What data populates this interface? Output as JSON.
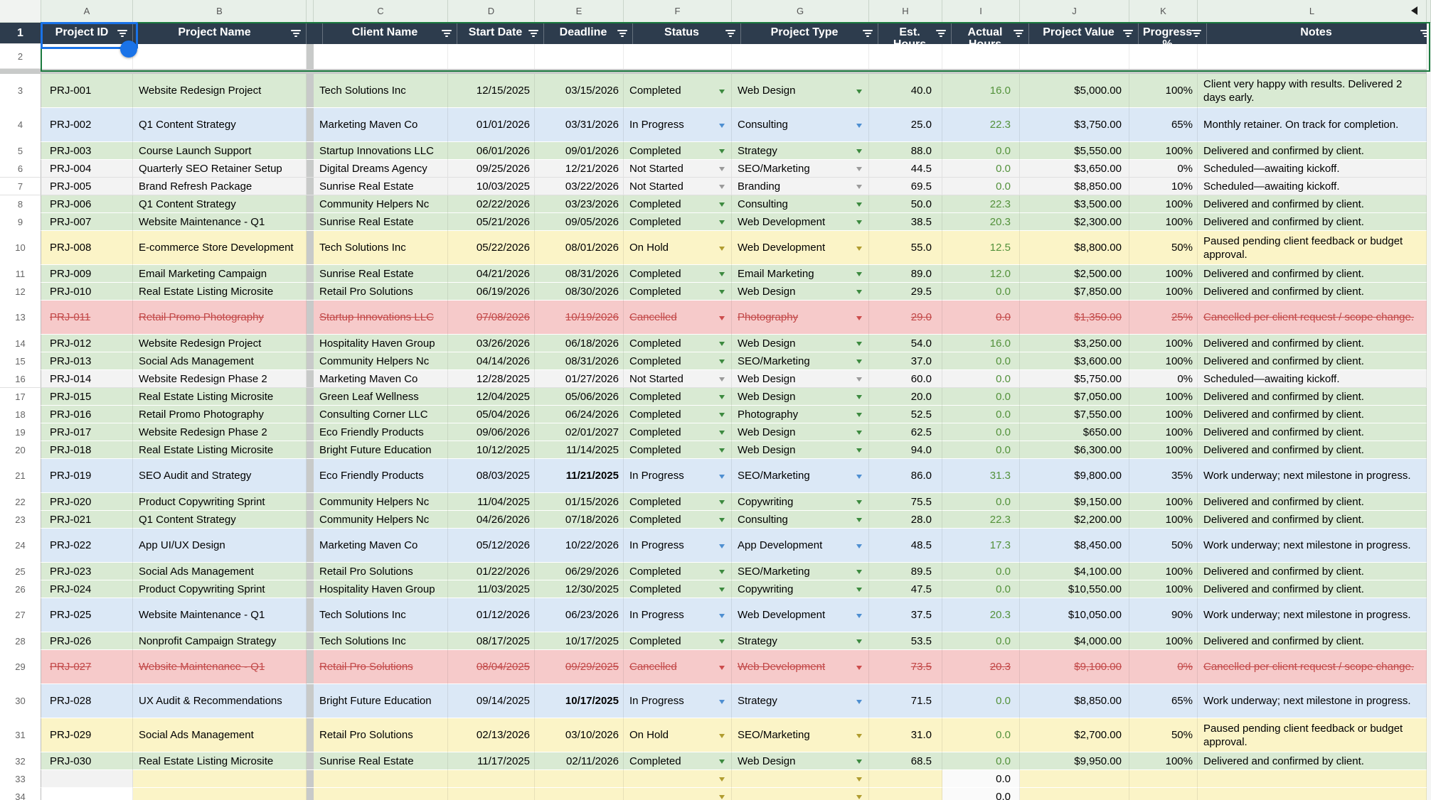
{
  "colors": {
    "header_bg": "#2d3c4d",
    "header_text": "#ffffff",
    "completed": "#d9ead3",
    "in_progress": "#dbe8f6",
    "on_hold": "#fbf4c7",
    "cancelled": "#f6caca",
    "not_started": "#f3f3f3",
    "entry_yellow": "#fbf4c7",
    "selection_blue": "#1a73e8",
    "range_border_green": "#1b7a3e",
    "actual_hours_green": "#53913b",
    "cancelled_text": "#c24848",
    "arrows": {
      "Completed": "#3c8a3f",
      "In Progress": "#4e8fd1",
      "Not Started": "#9a9a9a",
      "On Hold": "#b09c2f",
      "Cancelled": "#cc4b4b",
      "entry": "#b09c2f"
    }
  },
  "sheet": {
    "selected_cell": "A1",
    "column_letters": [
      "A",
      "B",
      "C",
      "D",
      "E",
      "F",
      "G",
      "H",
      "I",
      "J",
      "K",
      "L"
    ],
    "headers": [
      "Project ID",
      "Project Name",
      "Client Name",
      "Start Date",
      "Deadline",
      "Status",
      "Project Type",
      "Est. Hours",
      "Actual Hours",
      "Project Value",
      "Progress %",
      "Notes"
    ],
    "rows": [
      {
        "n": 3,
        "double": true,
        "theme": "completed",
        "id": "PRJ-001",
        "name": "Website Redesign Project",
        "client": "Tech Solutions Inc",
        "start": "12/15/2025",
        "deadline": "03/15/2026",
        "bold_deadline": false,
        "status": "Completed",
        "type": "Web Design",
        "est": "40.0",
        "act": "16.0",
        "value": "$5,000.00",
        "progress": "100%",
        "notes": "Client very happy with results. Delivered 2 days early."
      },
      {
        "n": 4,
        "double": true,
        "theme": "in_progress",
        "id": "PRJ-002",
        "name": "Q1 Content Strategy",
        "client": "Marketing Maven Co",
        "start": "01/01/2026",
        "deadline": "03/31/2026",
        "bold_deadline": false,
        "status": "In Progress",
        "type": "Consulting",
        "est": "25.0",
        "act": "22.3",
        "value": "$3,750.00",
        "progress": "65%",
        "notes": "Monthly retainer. On track for completion."
      },
      {
        "n": 5,
        "double": false,
        "theme": "completed",
        "id": "PRJ-003",
        "name": "Course Launch Support",
        "client": "Startup Innovations LLC",
        "start": "06/01/2026",
        "deadline": "09/01/2026",
        "bold_deadline": false,
        "status": "Completed",
        "type": "Strategy",
        "est": "88.0",
        "act": "0.0",
        "value": "$5,550.00",
        "progress": "100%",
        "notes": "Delivered and confirmed by client."
      },
      {
        "n": 6,
        "double": false,
        "theme": "not_started",
        "id": "PRJ-004",
        "name": "Quarterly SEO Retainer Setup",
        "client": "Digital Dreams Agency",
        "start": "09/25/2026",
        "deadline": "12/21/2026",
        "bold_deadline": false,
        "status": "Not Started",
        "type": "SEO/Marketing",
        "est": "44.5",
        "act": "0.0",
        "value": "$3,650.00",
        "progress": "0%",
        "notes": "Scheduled—awaiting kickoff."
      },
      {
        "n": 7,
        "double": false,
        "theme": "not_started",
        "id": "PRJ-005",
        "name": "Brand Refresh Package",
        "client": "Sunrise Real Estate",
        "start": "10/03/2025",
        "deadline": "03/22/2026",
        "bold_deadline": false,
        "status": "Not Started",
        "type": "Branding",
        "est": "69.5",
        "act": "0.0",
        "value": "$8,850.00",
        "progress": "10%",
        "notes": "Scheduled—awaiting kickoff."
      },
      {
        "n": 8,
        "double": false,
        "theme": "completed",
        "id": "PRJ-006",
        "name": "Q1 Content Strategy",
        "client": "Community Helpers Nc",
        "start": "02/22/2026",
        "deadline": "03/23/2026",
        "bold_deadline": false,
        "status": "Completed",
        "type": "Consulting",
        "est": "50.0",
        "act": "22.3",
        "value": "$3,500.00",
        "progress": "100%",
        "notes": "Delivered and confirmed by client."
      },
      {
        "n": 9,
        "double": false,
        "theme": "completed",
        "id": "PRJ-007",
        "name": "Website Maintenance - Q1",
        "client": "Sunrise Real Estate",
        "start": "05/21/2026",
        "deadline": "09/05/2026",
        "bold_deadline": false,
        "status": "Completed",
        "type": "Web Development",
        "est": "38.5",
        "act": "20.3",
        "value": "$2,300.00",
        "progress": "100%",
        "notes": "Delivered and confirmed by client."
      },
      {
        "n": 10,
        "double": true,
        "theme": "on_hold",
        "id": "PRJ-008",
        "name": "E-commerce Store Development",
        "client": "Tech Solutions Inc",
        "start": "05/22/2026",
        "deadline": "08/01/2026",
        "bold_deadline": false,
        "status": "On Hold",
        "type": "Web Development",
        "est": "55.0",
        "act": "12.5",
        "value": "$8,800.00",
        "progress": "50%",
        "notes": "Paused pending client feedback or budget approval."
      },
      {
        "n": 11,
        "double": false,
        "theme": "completed",
        "id": "PRJ-009",
        "name": "Email Marketing Campaign",
        "client": "Sunrise Real Estate",
        "start": "04/21/2026",
        "deadline": "08/31/2026",
        "bold_deadline": false,
        "status": "Completed",
        "type": "Email Marketing",
        "est": "89.0",
        "act": "12.0",
        "value": "$2,500.00",
        "progress": "100%",
        "notes": "Delivered and confirmed by client."
      },
      {
        "n": 12,
        "double": false,
        "theme": "completed",
        "id": "PRJ-010",
        "name": "Real Estate Listing Microsite",
        "client": "Retail Pro Solutions",
        "start": "06/19/2026",
        "deadline": "08/30/2026",
        "bold_deadline": false,
        "status": "Completed",
        "type": "Web Design",
        "est": "29.5",
        "act": "0.0",
        "value": "$7,850.00",
        "progress": "100%",
        "notes": "Delivered and confirmed by client."
      },
      {
        "n": 13,
        "double": true,
        "theme": "cancelled",
        "id": "PRJ-011",
        "name": "Retail Promo Photography",
        "client": "Startup Innovations LLC",
        "start": "07/08/2026",
        "deadline": "10/19/2026",
        "bold_deadline": false,
        "status": "Cancelled",
        "type": "Photography",
        "est": "29.0",
        "act": "0.0",
        "value": "$1,350.00",
        "progress": "25%",
        "notes": "Cancelled per client request / scope change."
      },
      {
        "n": 14,
        "double": false,
        "theme": "completed",
        "id": "PRJ-012",
        "name": "Website Redesign Project",
        "client": "Hospitality Haven Group",
        "start": "03/26/2026",
        "deadline": "06/18/2026",
        "bold_deadline": false,
        "status": "Completed",
        "type": "Web Design",
        "est": "54.0",
        "act": "16.0",
        "value": "$3,250.00",
        "progress": "100%",
        "notes": "Delivered and confirmed by client."
      },
      {
        "n": 15,
        "double": false,
        "theme": "completed",
        "id": "PRJ-013",
        "name": "Social Ads Management",
        "client": "Community Helpers Nc",
        "start": "04/14/2026",
        "deadline": "08/31/2026",
        "bold_deadline": false,
        "status": "Completed",
        "type": "SEO/Marketing",
        "est": "37.0",
        "act": "0.0",
        "value": "$3,600.00",
        "progress": "100%",
        "notes": "Delivered and confirmed by client."
      },
      {
        "n": 16,
        "double": false,
        "theme": "not_started",
        "id": "PRJ-014",
        "name": "Website Redesign Phase 2",
        "client": "Marketing Maven Co",
        "start": "12/28/2025",
        "deadline": "01/27/2026",
        "bold_deadline": false,
        "status": "Not Started",
        "type": "Web Design",
        "est": "60.0",
        "act": "0.0",
        "value": "$5,750.00",
        "progress": "0%",
        "notes": "Scheduled—awaiting kickoff."
      },
      {
        "n": 17,
        "double": false,
        "theme": "completed",
        "id": "PRJ-015",
        "name": "Real Estate Listing Microsite",
        "client": "Green Leaf Wellness",
        "start": "12/04/2025",
        "deadline": "05/06/2026",
        "bold_deadline": false,
        "status": "Completed",
        "type": "Web Design",
        "est": "20.0",
        "act": "0.0",
        "value": "$7,050.00",
        "progress": "100%",
        "notes": "Delivered and confirmed by client."
      },
      {
        "n": 18,
        "double": false,
        "theme": "completed",
        "id": "PRJ-016",
        "name": "Retail Promo Photography",
        "client": "Consulting Corner LLC",
        "start": "05/04/2026",
        "deadline": "06/24/2026",
        "bold_deadline": false,
        "status": "Completed",
        "type": "Photography",
        "est": "52.5",
        "act": "0.0",
        "value": "$7,550.00",
        "progress": "100%",
        "notes": "Delivered and confirmed by client."
      },
      {
        "n": 19,
        "double": false,
        "theme": "completed",
        "id": "PRJ-017",
        "name": "Website Redesign Phase 2",
        "client": "Eco Friendly Products",
        "start": "09/06/2026",
        "deadline": "02/01/2027",
        "bold_deadline": false,
        "status": "Completed",
        "type": "Web Design",
        "est": "62.5",
        "act": "0.0",
        "value": "$650.00",
        "progress": "100%",
        "notes": "Delivered and confirmed by client."
      },
      {
        "n": 20,
        "double": false,
        "theme": "completed",
        "id": "PRJ-018",
        "name": "Real Estate Listing Microsite",
        "client": "Bright Future Education",
        "start": "10/12/2025",
        "deadline": "11/14/2025",
        "bold_deadline": false,
        "status": "Completed",
        "type": "Web Design",
        "est": "94.0",
        "act": "0.0",
        "value": "$6,300.00",
        "progress": "100%",
        "notes": "Delivered and confirmed by client."
      },
      {
        "n": 21,
        "double": true,
        "theme": "in_progress",
        "id": "PRJ-019",
        "name": "SEO Audit and Strategy",
        "client": "Eco Friendly Products",
        "start": "08/03/2025",
        "deadline": "11/21/2025",
        "bold_deadline": true,
        "status": "In Progress",
        "type": "SEO/Marketing",
        "est": "86.0",
        "act": "31.3",
        "value": "$9,800.00",
        "progress": "35%",
        "notes": "Work underway; next milestone in progress."
      },
      {
        "n": 22,
        "double": false,
        "theme": "completed",
        "id": "PRJ-020",
        "name": "Product Copywriting Sprint",
        "client": "Community Helpers Nc",
        "start": "11/04/2025",
        "deadline": "01/15/2026",
        "bold_deadline": false,
        "status": "Completed",
        "type": "Copywriting",
        "est": "75.5",
        "act": "0.0",
        "value": "$9,150.00",
        "progress": "100%",
        "notes": "Delivered and confirmed by client."
      },
      {
        "n": 23,
        "double": false,
        "theme": "completed",
        "id": "PRJ-021",
        "name": "Q1 Content Strategy",
        "client": "Community Helpers Nc",
        "start": "04/26/2026",
        "deadline": "07/18/2026",
        "bold_deadline": false,
        "status": "Completed",
        "type": "Consulting",
        "est": "28.0",
        "act": "22.3",
        "value": "$2,200.00",
        "progress": "100%",
        "notes": "Delivered and confirmed by client."
      },
      {
        "n": 24,
        "double": true,
        "theme": "in_progress",
        "id": "PRJ-022",
        "name": "App UI/UX Design",
        "client": "Marketing Maven Co",
        "start": "05/12/2026",
        "deadline": "10/22/2026",
        "bold_deadline": false,
        "status": "In Progress",
        "type": "App Development",
        "est": "48.5",
        "act": "17.3",
        "value": "$8,450.00",
        "progress": "50%",
        "notes": "Work underway; next milestone in progress."
      },
      {
        "n": 25,
        "double": false,
        "theme": "completed",
        "id": "PRJ-023",
        "name": "Social Ads Management",
        "client": "Retail Pro Solutions",
        "start": "01/22/2026",
        "deadline": "06/29/2026",
        "bold_deadline": false,
        "status": "Completed",
        "type": "SEO/Marketing",
        "est": "89.5",
        "act": "0.0",
        "value": "$4,100.00",
        "progress": "100%",
        "notes": "Delivered and confirmed by client."
      },
      {
        "n": 26,
        "double": false,
        "theme": "completed",
        "id": "PRJ-024",
        "name": "Product Copywriting Sprint",
        "client": "Hospitality Haven Group",
        "start": "11/03/2025",
        "deadline": "12/30/2025",
        "bold_deadline": false,
        "status": "Completed",
        "type": "Copywriting",
        "est": "47.5",
        "act": "0.0",
        "value": "$10,550.00",
        "progress": "100%",
        "notes": "Delivered and confirmed by client."
      },
      {
        "n": 27,
        "double": true,
        "theme": "in_progress",
        "id": "PRJ-025",
        "name": "Website Maintenance - Q1",
        "client": "Tech Solutions Inc",
        "start": "01/12/2026",
        "deadline": "06/23/2026",
        "bold_deadline": false,
        "status": "In Progress",
        "type": "Web Development",
        "est": "37.5",
        "act": "20.3",
        "value": "$10,050.00",
        "progress": "90%",
        "notes": "Work underway; next milestone in progress."
      },
      {
        "n": 28,
        "double": false,
        "theme": "completed",
        "id": "PRJ-026",
        "name": "Nonprofit Campaign Strategy",
        "client": "Tech Solutions Inc",
        "start": "08/17/2025",
        "deadline": "10/17/2025",
        "bold_deadline": false,
        "status": "Completed",
        "type": "Strategy",
        "est": "53.5",
        "act": "0.0",
        "value": "$4,000.00",
        "progress": "100%",
        "notes": "Delivered and confirmed by client."
      },
      {
        "n": 29,
        "double": true,
        "theme": "cancelled",
        "id": "PRJ-027",
        "name": "Website Maintenance - Q1",
        "client": "Retail Pro Solutions",
        "start": "08/04/2025",
        "deadline": "09/29/2025",
        "bold_deadline": false,
        "status": "Cancelled",
        "type": "Web Development",
        "est": "73.5",
        "act": "20.3",
        "value": "$9,100.00",
        "progress": "0%",
        "notes": "Cancelled per client request / scope change."
      },
      {
        "n": 30,
        "double": true,
        "theme": "in_progress",
        "id": "PRJ-028",
        "name": "UX Audit & Recommendations",
        "client": "Bright Future Education",
        "start": "09/14/2025",
        "deadline": "10/17/2025",
        "bold_deadline": true,
        "status": "In Progress",
        "type": "Strategy",
        "est": "71.5",
        "act": "0.0",
        "value": "$8,850.00",
        "progress": "65%",
        "notes": "Work underway; next milestone in progress."
      },
      {
        "n": 31,
        "double": true,
        "theme": "on_hold",
        "id": "PRJ-029",
        "name": "Social Ads Management",
        "client": "Retail Pro Solutions",
        "start": "02/13/2026",
        "deadline": "03/10/2026",
        "bold_deadline": false,
        "status": "On Hold",
        "type": "SEO/Marketing",
        "est": "31.0",
        "act": "0.0",
        "value": "$2,700.00",
        "progress": "50%",
        "notes": "Paused pending client feedback or budget approval."
      },
      {
        "n": 32,
        "double": false,
        "theme": "completed",
        "id": "PRJ-030",
        "name": "Real Estate Listing Microsite",
        "client": "Sunrise Real Estate",
        "start": "11/17/2025",
        "deadline": "02/11/2026",
        "bold_deadline": false,
        "status": "Completed",
        "type": "Web Design",
        "est": "68.5",
        "act": "0.0",
        "value": "$9,950.00",
        "progress": "100%",
        "notes": "Delivered and confirmed by client."
      }
    ],
    "entry_rows": [
      {
        "n": 33,
        "act": "0.0",
        "cut": false
      },
      {
        "n": 34,
        "act": "0.0",
        "cut": true
      }
    ]
  }
}
